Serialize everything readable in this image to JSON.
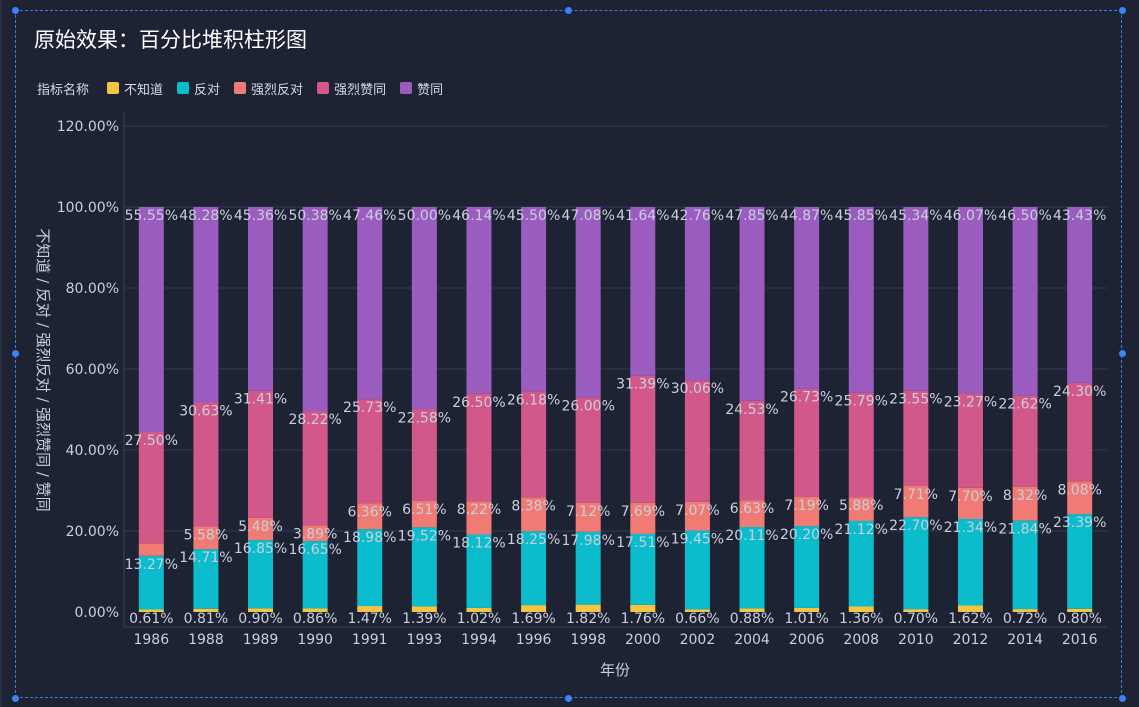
{
  "title": "原始效果：百分比堆积柱形图",
  "chart_data": {
    "type": "bar",
    "stacked": "percent",
    "title": "原始效果：百分比堆积柱形图",
    "xlabel": "年份",
    "ylabel": "不知道 / 反对 / 强烈反对 / 强烈赞同 / 赞同",
    "ylim": [
      0,
      120
    ],
    "yticks": [
      "0.00%",
      "20.00%",
      "40.00%",
      "60.00%",
      "80.00%",
      "100.00%",
      "120.00%"
    ],
    "grid": true,
    "legend_title": "指标名称",
    "legend_position": "top-left",
    "categories": [
      "1986",
      "1988",
      "1989",
      "1990",
      "1991",
      "1993",
      "1994",
      "1996",
      "1998",
      "2000",
      "2002",
      "2004",
      "2006",
      "2008",
      "2010",
      "2012",
      "2014",
      "2016"
    ],
    "series": [
      {
        "name": "不知道",
        "color": "#f5c542",
        "values": [
          0.61,
          0.81,
          0.9,
          0.86,
          1.47,
          1.39,
          1.02,
          1.69,
          1.82,
          1.76,
          0.66,
          0.88,
          1.01,
          1.36,
          0.7,
          1.62,
          0.72,
          0.8
        ],
        "labels": [
          "0.61%",
          "0.81%",
          "0.90%",
          "0.86%",
          "1.47%",
          "1.39%",
          "1.02%",
          "1.69%",
          "1.82%",
          "1.76%",
          "0.66%",
          "0.88%",
          "1.01%",
          "1.36%",
          "0.70%",
          "1.62%",
          "0.72%",
          "0.80%"
        ]
      },
      {
        "name": "反对",
        "color": "#0abccc",
        "values": [
          13.27,
          14.71,
          16.85,
          16.65,
          18.98,
          19.52,
          18.12,
          18.25,
          17.98,
          17.51,
          19.45,
          20.11,
          20.2,
          21.12,
          22.7,
          21.34,
          21.84,
          23.39
        ],
        "labels": [
          "13.27%",
          "14.71%",
          "16.85%",
          "16.65%",
          "18.98%",
          "19.52%",
          "18.12%",
          "18.25%",
          "17.98%",
          "17.51%",
          "19.45%",
          "20.11%",
          "20.20%",
          "21.12%",
          "22.70%",
          "21.34%",
          "21.84%",
          "23.39%"
        ]
      },
      {
        "name": "强烈反对",
        "color": "#f07a74",
        "values": [
          3.07,
          5.58,
          5.48,
          3.89,
          6.36,
          6.51,
          8.22,
          8.38,
          7.12,
          7.69,
          7.07,
          6.63,
          7.19,
          5.88,
          7.71,
          7.7,
          8.32,
          8.08
        ],
        "labels": [
          "",
          "5.58%",
          "5.48%",
          "3.89%",
          "6.36%",
          "6.51%",
          "8.22%",
          "8.38%",
          "7.12%",
          "7.69%",
          "7.07%",
          "6.63%",
          "7.19%",
          "5.88%",
          "7.71%",
          "7.70%",
          "8.32%",
          "8.08%"
        ]
      },
      {
        "name": "强烈赞同",
        "color": "#d3588a",
        "values": [
          27.5,
          30.63,
          31.41,
          28.22,
          25.73,
          22.58,
          26.5,
          26.18,
          26.0,
          31.39,
          30.06,
          24.53,
          26.73,
          25.79,
          23.55,
          23.27,
          22.62,
          24.3
        ],
        "labels": [
          "27.50%",
          "30.63%",
          "31.41%",
          "28.22%",
          "25.73%",
          "22.58%",
          "26.50%",
          "26.18%",
          "26.00%",
          "31.39%",
          "30.06%",
          "24.53%",
          "26.73%",
          "25.79%",
          "23.55%",
          "23.27%",
          "22.62%",
          "24.30%"
        ]
      },
      {
        "name": "赞同",
        "color": "#9b5cbf",
        "values": [
          55.55,
          48.28,
          45.36,
          50.38,
          47.46,
          50.0,
          46.14,
          45.5,
          47.08,
          41.64,
          42.76,
          47.85,
          44.87,
          45.85,
          45.34,
          46.07,
          46.5,
          43.43
        ],
        "labels": [
          "55.55%",
          "48.28%",
          "45.36%",
          "50.38%",
          "47.46%",
          "50.00%",
          "46.14%",
          "45.50%",
          "47.08%",
          "41.64%",
          "42.76%",
          "47.85%",
          "44.87%",
          "45.85%",
          "45.34%",
          "46.07%",
          "46.50%",
          "43.43%"
        ]
      }
    ]
  }
}
